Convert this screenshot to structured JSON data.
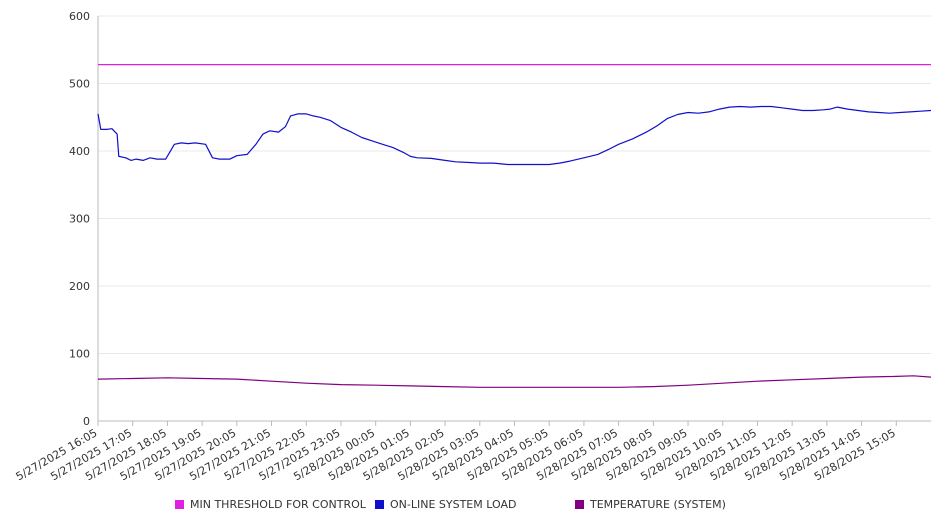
{
  "chart_data": {
    "type": "line",
    "title": "",
    "xlabel": "",
    "ylabel": "",
    "ylim": [
      0,
      600
    ],
    "yticks": [
      0,
      100,
      200,
      300,
      400,
      500,
      600
    ],
    "grid": true,
    "legend_position": "bottom",
    "x_tick_labels": [
      "5/27/2025 16:05",
      "5/27/2025 17:05",
      "5/27/2025 18:05",
      "5/27/2025 19:05",
      "5/27/2025 20:05",
      "5/27/2025 21:05",
      "5/27/2025 22:05",
      "5/27/2025 23:05",
      "5/28/2025 00:05",
      "5/28/2025 01:05",
      "5/28/2025 02:05",
      "5/28/2025 03:05",
      "5/28/2025 04:05",
      "5/28/2025 05:05",
      "5/28/2025 06:05",
      "5/28/2025 07:05",
      "5/28/2025 08:05",
      "5/28/2025 09:05",
      "5/28/2025 10:05",
      "5/28/2025 11:05",
      "5/28/2025 12:05",
      "5/28/2025 13:05",
      "5/28/2025 14:05",
      "5/28/2025 15:05"
    ],
    "x_unit": "hours from 5/27/2025 16:05",
    "series": [
      {
        "name": "MIN THRESHOLD FOR CONTROL",
        "color": "#e020e0",
        "points": [
          [
            0,
            528
          ],
          [
            24,
            528
          ]
        ]
      },
      {
        "name": "ON-LINE SYSTEM LOAD",
        "color": "#1010cc",
        "points": [
          [
            0.0,
            455
          ],
          [
            0.08,
            432
          ],
          [
            0.25,
            432
          ],
          [
            0.4,
            433
          ],
          [
            0.55,
            425
          ],
          [
            0.6,
            392
          ],
          [
            0.8,
            390
          ],
          [
            0.95,
            386
          ],
          [
            1.1,
            388
          ],
          [
            1.3,
            386
          ],
          [
            1.5,
            390
          ],
          [
            1.7,
            388
          ],
          [
            1.95,
            388
          ],
          [
            2.2,
            410
          ],
          [
            2.4,
            412
          ],
          [
            2.6,
            411
          ],
          [
            2.8,
            412
          ],
          [
            3.1,
            410
          ],
          [
            3.3,
            390
          ],
          [
            3.5,
            388
          ],
          [
            3.8,
            388
          ],
          [
            4.0,
            393
          ],
          [
            4.3,
            395
          ],
          [
            4.55,
            410
          ],
          [
            4.75,
            425
          ],
          [
            4.95,
            430
          ],
          [
            5.2,
            428
          ],
          [
            5.4,
            436
          ],
          [
            5.55,
            452
          ],
          [
            5.75,
            455
          ],
          [
            6.0,
            455
          ],
          [
            6.2,
            452
          ],
          [
            6.4,
            450
          ],
          [
            6.7,
            445
          ],
          [
            7.0,
            435
          ],
          [
            7.3,
            428
          ],
          [
            7.6,
            420
          ],
          [
            7.9,
            415
          ],
          [
            8.2,
            410
          ],
          [
            8.5,
            405
          ],
          [
            8.8,
            398
          ],
          [
            9.0,
            392
          ],
          [
            9.2,
            390
          ],
          [
            9.6,
            389
          ],
          [
            10.0,
            386
          ],
          [
            10.3,
            384
          ],
          [
            10.7,
            383
          ],
          [
            11.0,
            382
          ],
          [
            11.4,
            382
          ],
          [
            11.8,
            380
          ],
          [
            12.2,
            380
          ],
          [
            12.6,
            380
          ],
          [
            13.0,
            380
          ],
          [
            13.3,
            382
          ],
          [
            13.6,
            385
          ],
          [
            14.0,
            390
          ],
          [
            14.4,
            395
          ],
          [
            14.7,
            402
          ],
          [
            15.0,
            410
          ],
          [
            15.4,
            418
          ],
          [
            15.8,
            428
          ],
          [
            16.1,
            437
          ],
          [
            16.4,
            448
          ],
          [
            16.7,
            454
          ],
          [
            17.0,
            457
          ],
          [
            17.3,
            456
          ],
          [
            17.6,
            458
          ],
          [
            17.9,
            462
          ],
          [
            18.2,
            465
          ],
          [
            18.5,
            466
          ],
          [
            18.8,
            465
          ],
          [
            19.1,
            466
          ],
          [
            19.4,
            466
          ],
          [
            19.7,
            464
          ],
          [
            20.0,
            462
          ],
          [
            20.3,
            460
          ],
          [
            20.6,
            460
          ],
          [
            20.9,
            461
          ],
          [
            21.1,
            462
          ],
          [
            21.3,
            465
          ],
          [
            21.6,
            462
          ],
          [
            21.9,
            460
          ],
          [
            22.2,
            458
          ],
          [
            22.5,
            457
          ],
          [
            22.8,
            456
          ],
          [
            23.1,
            457
          ],
          [
            23.4,
            458
          ],
          [
            23.7,
            459
          ],
          [
            24.0,
            460
          ]
        ]
      },
      {
        "name": "TEMPERATURE (SYSTEM)",
        "color": "#800080",
        "points": [
          [
            0.0,
            62
          ],
          [
            1.0,
            63
          ],
          [
            2.0,
            64
          ],
          [
            3.0,
            63
          ],
          [
            4.0,
            62
          ],
          [
            5.0,
            59
          ],
          [
            6.0,
            56
          ],
          [
            7.0,
            54
          ],
          [
            8.0,
            53
          ],
          [
            9.0,
            52
          ],
          [
            10.0,
            51
          ],
          [
            11.0,
            50
          ],
          [
            12.0,
            50
          ],
          [
            13.0,
            50
          ],
          [
            14.0,
            50
          ],
          [
            15.0,
            50
          ],
          [
            16.0,
            51
          ],
          [
            17.0,
            53
          ],
          [
            18.0,
            56
          ],
          [
            19.0,
            59
          ],
          [
            20.0,
            61
          ],
          [
            21.0,
            63
          ],
          [
            22.0,
            65
          ],
          [
            23.0,
            66
          ],
          [
            23.5,
            67
          ],
          [
            24.0,
            65
          ]
        ]
      }
    ]
  }
}
